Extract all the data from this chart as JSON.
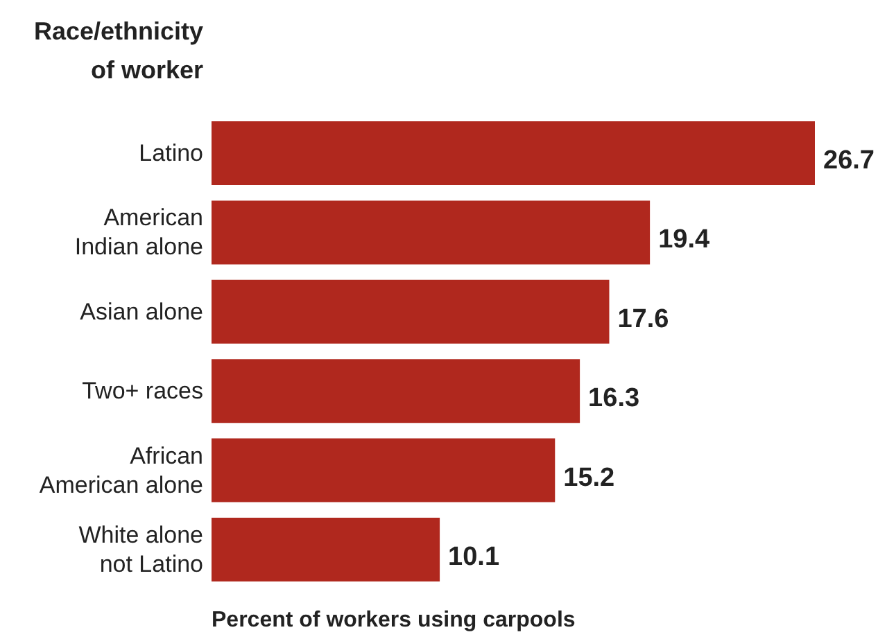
{
  "chart_data": {
    "type": "bar",
    "orientation": "horizontal",
    "ylabel": "Race/ethnicity of worker",
    "xlabel": "Percent of workers using carpools",
    "categories": [
      "Latino",
      "American Indian alone",
      "Asian alone",
      "Two+ races",
      "African American alone",
      "White alone not Latino"
    ],
    "values": [
      26.7,
      19.4,
      17.6,
      16.3,
      15.2,
      10.1
    ],
    "color": "#b0281e",
    "data_labels": true
  }
}
